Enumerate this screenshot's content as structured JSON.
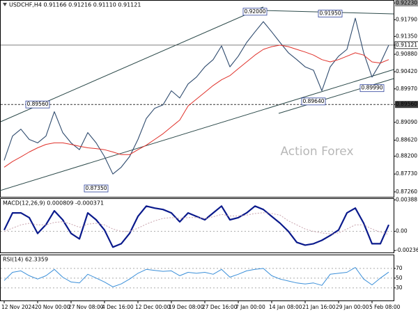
{
  "chart_data": [
    {
      "type": "line",
      "title": "USDCHF,H4 0.91166 0.91216 0.91110 0.91121",
      "watermark": "Action Forex",
      "categories": [
        "12 Nov 2024",
        null,
        null,
        null,
        "20 Nov 00:00",
        null,
        null,
        null,
        "27 Nov 08:00",
        null,
        null,
        null,
        "4 Dec 16:00",
        null,
        null,
        null,
        "12 Dec 00:00",
        null,
        null,
        null,
        "19 Dec 08:00",
        null,
        null,
        null,
        "27 Dec 16:00",
        null,
        null,
        null,
        "7 Jan 00:00",
        null,
        null,
        null,
        "14 Jan 08:00",
        null,
        null,
        null,
        "21 Jan 16:00",
        null,
        null,
        null,
        "29 Jan 00:00",
        null,
        null,
        null,
        "5 Feb 08:00",
        null,
        null
      ],
      "series": [
        {
          "color": "#2f4b6e",
          "style": "price",
          "values": [
            0.8809,
            0.8873,
            0.8891,
            0.8864,
            0.8855,
            0.8873,
            0.8937,
            0.8882,
            0.8855,
            0.8837,
            0.8882,
            0.8855,
            0.8819,
            0.8773,
            0.8791,
            0.8819,
            0.8864,
            0.8919,
            0.8946,
            0.8955,
            0.8992,
            0.8973,
            0.901,
            0.9028,
            0.9055,
            0.9074,
            0.911,
            0.9055,
            0.9083,
            0.9119,
            0.9147,
            0.9174,
            0.9147,
            0.9119,
            0.9092,
            0.9074,
            0.9055,
            0.9046,
            0.8992,
            0.9055,
            0.9083,
            0.9101,
            0.9183,
            0.9092,
            0.9028,
            0.9065,
            0.91121
          ]
        },
        {
          "color": "#e0312a",
          "style": "thin",
          "values": [
            0.8791,
            0.8806,
            0.8818,
            0.8831,
            0.8842,
            0.8851,
            0.8855,
            0.8855,
            0.8851,
            0.8846,
            0.8842,
            0.884,
            0.8837,
            0.8831,
            0.8824,
            0.8824,
            0.8837,
            0.8849,
            0.8864,
            0.8879,
            0.8897,
            0.8915,
            0.8952,
            0.897,
            0.8988,
            0.9006,
            0.9021,
            0.9032,
            0.905,
            0.9068,
            0.9086,
            0.9101,
            0.9108,
            0.9112,
            0.9108,
            0.9101,
            0.9094,
            0.9086,
            0.9074,
            0.9068,
            0.9074,
            0.9083,
            0.9092,
            0.9086,
            0.9068,
            0.9065,
            0.9074
          ]
        }
      ],
      "annotations": [
        {
          "label": "0.92000",
          "value": 0.92,
          "index": 30
        },
        {
          "label": "0.91950",
          "value": 0.9195,
          "index": 39
        },
        {
          "label": "0.89560",
          "value": 0.8956,
          "index": 4
        },
        {
          "label": "0.87350",
          "value": 0.8735,
          "index": 11
        },
        {
          "label": "0.89640",
          "value": 0.8964,
          "index": 37
        },
        {
          "label": "0.89990",
          "value": 0.8999,
          "index": 44
        }
      ],
      "ylim": [
        0.8713,
        0.9229
      ],
      "yticks": [
        {
          "value": 0.9223,
          "label": "0.92230",
          "style": "top"
        },
        {
          "value": 0.9179,
          "label": "0.91790"
        },
        {
          "value": 0.9135,
          "label": "0.91350"
        },
        {
          "value": 0.91121,
          "label": "0.91121",
          "style": "current"
        },
        {
          "value": 0.9088,
          "label": "0.90880"
        },
        {
          "value": 0.9042,
          "label": "0.90420"
        },
        {
          "value": 0.8997,
          "label": "0.89970"
        },
        {
          "value": 0.8956,
          "label": "0.89560",
          "style": "level"
        },
        {
          "value": 0.8909,
          "label": "0.89090"
        },
        {
          "value": 0.8862,
          "label": "0.88620"
        },
        {
          "value": 0.882,
          "label": "0.88200"
        },
        {
          "value": 0.8773,
          "label": "0.87730"
        },
        {
          "value": 0.8726,
          "label": "0.87260"
        }
      ]
    },
    {
      "type": "line",
      "title": "MACD(12,26,9) 0.000809 -0.000371",
      "series": [
        {
          "color": "#0a1a8c",
          "style": "thick",
          "values": [
            0.00017,
            0.00228,
            0.00228,
            0.00169,
            -0.00025,
            0.00084,
            0.00253,
            0.00143,
            -0.00025,
            -0.00093,
            0.00228,
            0.00143,
            0.00017,
            -0.00194,
            -0.00152,
            -0.00025,
            0.00185,
            0.00312,
            0.00287,
            0.0027,
            0.00228,
            0.00118,
            0.00228,
            0.00185,
            0.00143,
            0.00228,
            0.00312,
            0.00143,
            0.00169,
            0.00228,
            0.00312,
            0.0027,
            0.00185,
            0.00101,
            0,
            -0.00135,
            -0.00169,
            -0.00152,
            -0.0011,
            -0.00051,
            0.00017,
            0.00228,
            0.00287,
            0.00101,
            -0.00152,
            -0.00152,
            0.000809
          ]
        },
        {
          "color": "#c9a3ad",
          "style": "dotted",
          "values": [
            0,
            0.0004,
            0.0008,
            0.001,
            0.0008,
            0.0008,
            0.0011,
            0.0012,
            0.0009,
            0.0005,
            0.0009,
            0.001,
            0.0008,
            0.0003,
            0,
            0,
            0.0004,
            0.0009,
            0.0013,
            0.0016,
            0.0017,
            0.0016,
            0.0017,
            0.0017,
            0.0016,
            0.0018,
            0.0021,
            0.0019,
            0.0019,
            0.002,
            0.0022,
            0.0023,
            0.0022,
            0.002,
            0.0013,
            0.0008,
            0.0003,
            0,
            -0.0002,
            -0.0003,
            -0.0002,
            0.0003,
            0.0008,
            0.0008,
            0.0003,
            -0.0001,
            -0.000371
          ]
        }
      ],
      "ylim": [
        -0.0026,
        0.004
      ],
      "yticks": [
        0.00388,
        {
          "value": 0,
          "label": "0.00",
          "style": "dotted"
        },
        -0.002361
      ]
    },
    {
      "type": "line",
      "title": "RSI(14) 62.3359",
      "series": [
        {
          "color": "#3a8fd9",
          "style": "thin",
          "values": [
            45,
            62,
            65,
            55,
            48,
            55,
            68,
            52,
            42,
            40,
            58,
            50,
            42,
            32,
            38,
            48,
            60,
            68,
            66,
            64,
            65,
            55,
            62,
            60,
            62,
            58,
            68,
            52,
            58,
            65,
            68,
            70,
            55,
            48,
            44,
            40,
            38,
            40,
            35,
            58,
            60,
            62,
            72,
            48,
            36,
            50,
            62.3359
          ]
        }
      ],
      "ylim": [
        4,
        97
      ],
      "yticks": [
        {
          "value": 70,
          "label": "70",
          "style": "dotted"
        },
        {
          "value": 50,
          "label": "50",
          "style": "dotted"
        },
        {
          "value": 30,
          "label": "30",
          "style": "dotted"
        }
      ]
    }
  ]
}
